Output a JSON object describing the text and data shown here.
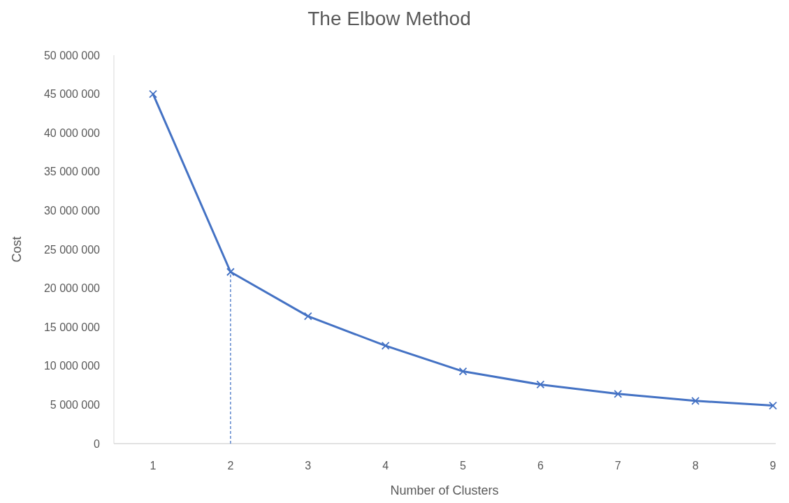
{
  "chart_data": {
    "type": "line",
    "title": "The Elbow Method",
    "xlabel": "Number of Clusters",
    "ylabel": "Cost",
    "categories": [
      "1",
      "2",
      "3",
      "4",
      "5",
      "6",
      "7",
      "8",
      "9"
    ],
    "series": [
      {
        "color": "#4472c4",
        "values": [
          45000000,
          22100000,
          16400000,
          12600000,
          9300000,
          7600000,
          6400000,
          5500000,
          4900000
        ]
      }
    ],
    "ylim": [
      0,
      50000000
    ],
    "yticks": [
      {
        "value": 0,
        "label": "0"
      },
      {
        "value": 5000000,
        "label": "5 000 000"
      },
      {
        "value": 10000000,
        "label": "10 000 000"
      },
      {
        "value": 15000000,
        "label": "15 000 000"
      },
      {
        "value": 20000000,
        "label": "20 000 000"
      },
      {
        "value": 25000000,
        "label": "25 000 000"
      },
      {
        "value": 30000000,
        "label": "30 000 000"
      },
      {
        "value": 35000000,
        "label": "35 000 000"
      },
      {
        "value": 40000000,
        "label": "40 000 000"
      },
      {
        "value": 45000000,
        "label": "45 000 000"
      },
      {
        "value": 50000000,
        "label": "50 000 000"
      }
    ],
    "ref_lines": [
      {
        "axis": "x",
        "value": "2",
        "color": "#4472c4",
        "line_style": "dashed"
      }
    ],
    "marker": "cross",
    "line_style": "solid",
    "grid": false
  }
}
